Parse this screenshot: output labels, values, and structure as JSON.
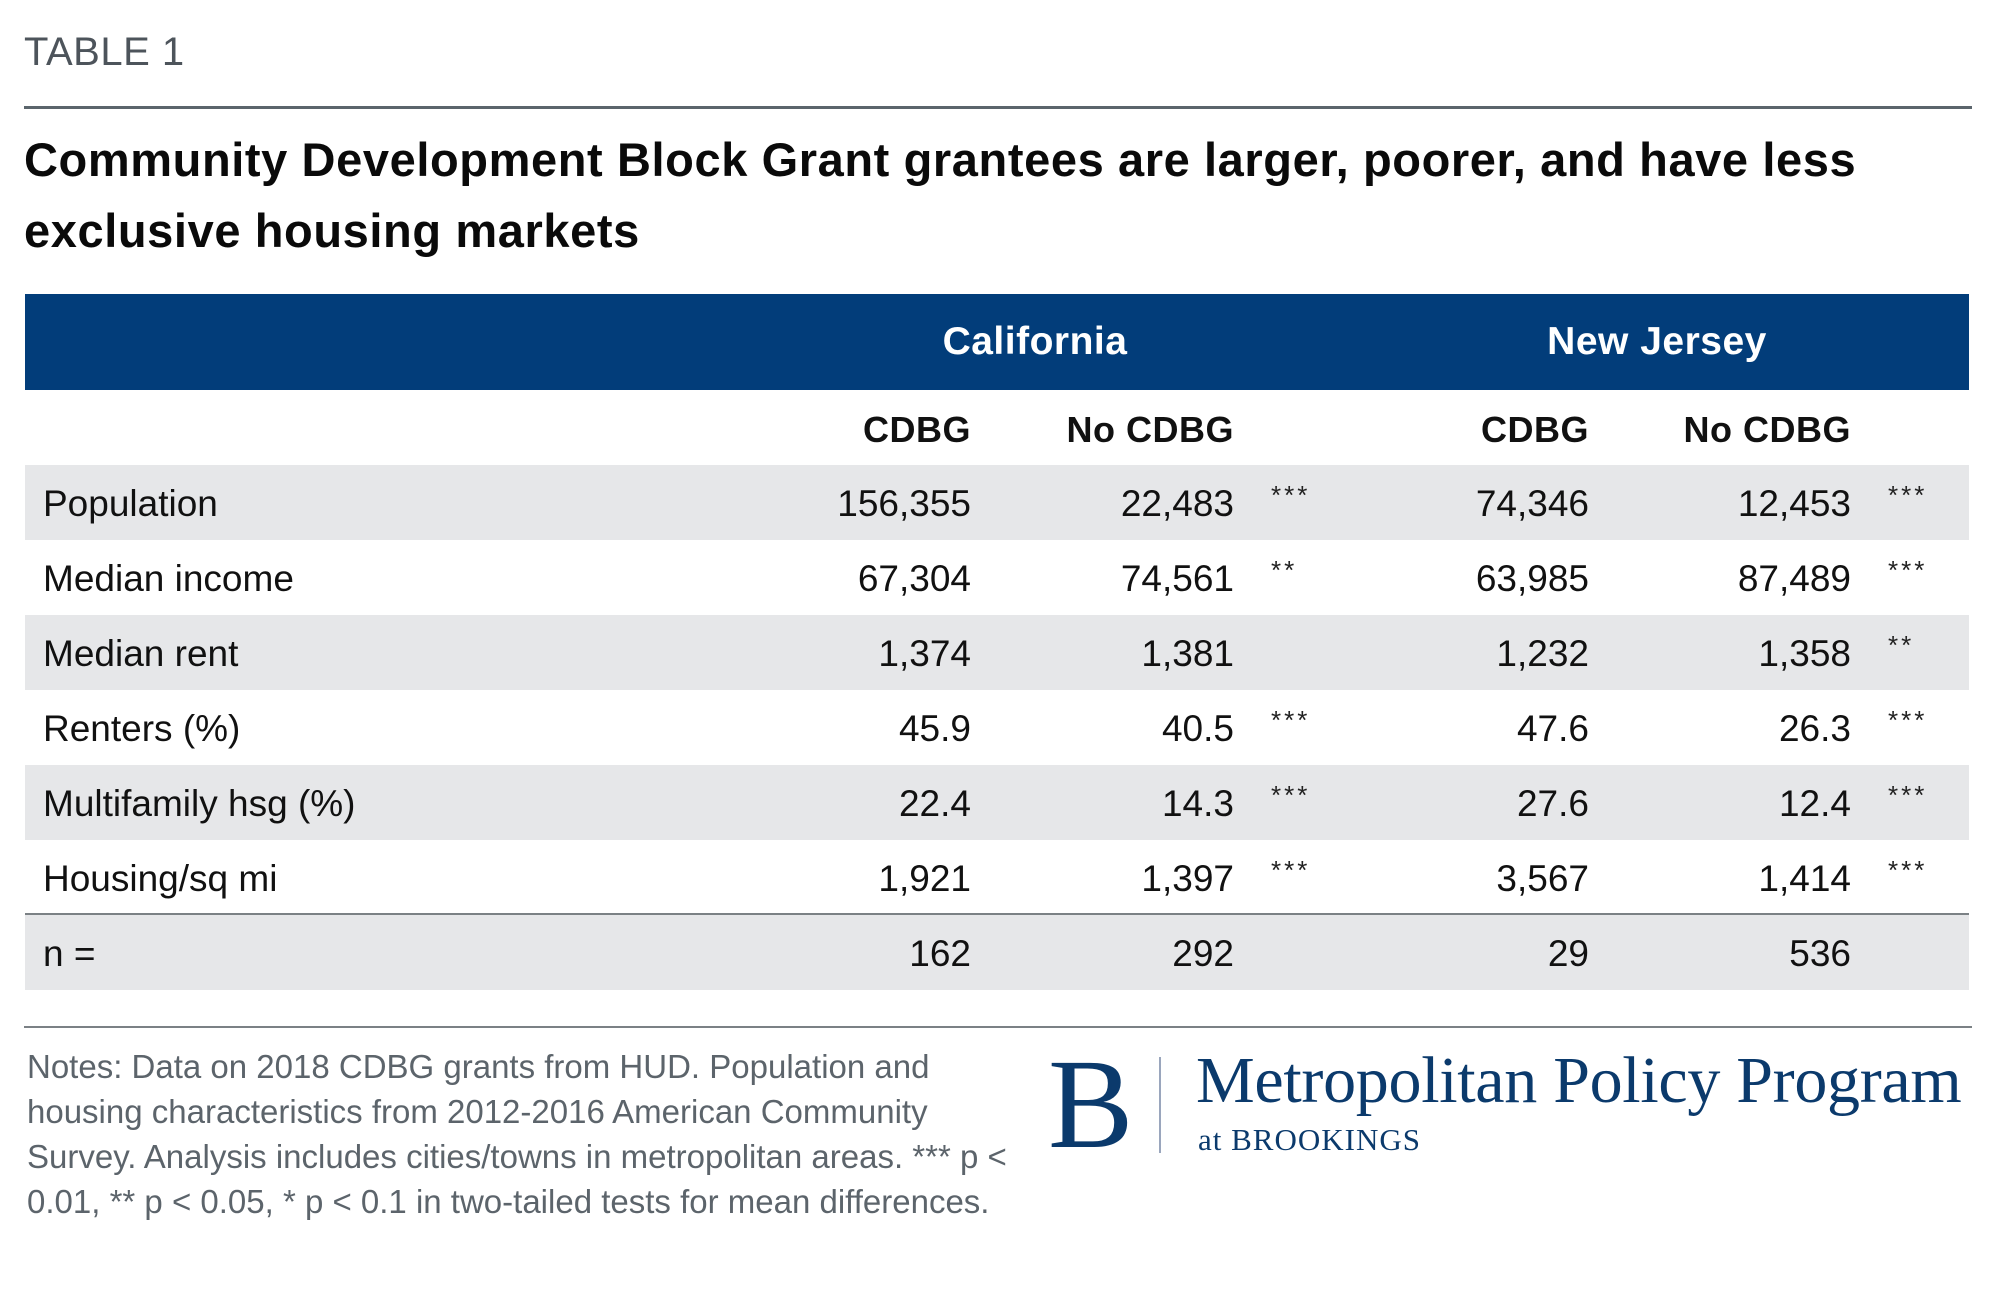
{
  "table_label": "TABLE 1",
  "title": "Community Development Block Grant grantees are larger, poorer, and have less exclusive housing markets",
  "header": {
    "groups": [
      "California",
      "New Jersey"
    ],
    "columns": [
      "CDBG",
      "No CDBG",
      "CDBG",
      "No CDBG"
    ]
  },
  "rows": [
    {
      "label": "Population",
      "ca_cdbg": "156,355",
      "ca_no": "22,483",
      "ca_sig": "***",
      "nj_cdbg": "74,346",
      "nj_no": "12,453",
      "nj_sig": "***"
    },
    {
      "label": "Median income",
      "ca_cdbg": "67,304",
      "ca_no": "74,561",
      "ca_sig": "**",
      "nj_cdbg": "63,985",
      "nj_no": "87,489",
      "nj_sig": "***"
    },
    {
      "label": "Median rent",
      "ca_cdbg": "1,374",
      "ca_no": "1,381",
      "ca_sig": "",
      "nj_cdbg": "1,232",
      "nj_no": "1,358",
      "nj_sig": "**"
    },
    {
      "label": "Renters (%)",
      "ca_cdbg": "45.9",
      "ca_no": "40.5",
      "ca_sig": "***",
      "nj_cdbg": "47.6",
      "nj_no": "26.3",
      "nj_sig": "***"
    },
    {
      "label": "Multifamily hsg (%)",
      "ca_cdbg": "22.4",
      "ca_no": "14.3",
      "ca_sig": "***",
      "nj_cdbg": "27.6",
      "nj_no": "12.4",
      "nj_sig": "***"
    },
    {
      "label": "Housing/sq mi",
      "ca_cdbg": "1,921",
      "ca_no": "1,397",
      "ca_sig": "***",
      "nj_cdbg": "3,567",
      "nj_no": "1,414",
      "nj_sig": "***"
    },
    {
      "label": "n =",
      "ca_cdbg": "162",
      "ca_no": "292",
      "ca_sig": "",
      "nj_cdbg": "29",
      "nj_no": "536",
      "nj_sig": ""
    }
  ],
  "notes": "Notes: Data on 2018 CDBG grants from HUD. Population and housing characteristics from 2012-2016 American Community Survey. Analysis includes cities/towns in metropolitan areas. *** p < 0.01, ** p < 0.05, * p < 0.1 in two-tailed tests for mean differences.",
  "logo": {
    "mark": "B",
    "name": "Metropolitan Policy Program",
    "sub": "at BROOKINGS"
  },
  "colors": {
    "header_bg": "#023d7a",
    "row_stripe": "#e6e7e9",
    "brand": "#0b3a6c"
  },
  "chart_data": {
    "type": "table",
    "title": "Community Development Block Grant grantees are larger, poorer, and have less exclusive housing markets",
    "column_groups": [
      "California",
      "New Jersey"
    ],
    "columns": [
      "CA CDBG",
      "CA No CDBG",
      "CA sig",
      "NJ CDBG",
      "NJ No CDBG",
      "NJ sig"
    ],
    "row_labels": [
      "Population",
      "Median income",
      "Median rent",
      "Renters (%)",
      "Multifamily hsg (%)",
      "Housing/sq mi",
      "n ="
    ],
    "values": [
      [
        156355,
        22483,
        "***",
        74346,
        12453,
        "***"
      ],
      [
        67304,
        74561,
        "**",
        63985,
        87489,
        "***"
      ],
      [
        1374,
        1381,
        "",
        1232,
        1358,
        "**"
      ],
      [
        45.9,
        40.5,
        "***",
        47.6,
        26.3,
        "***"
      ],
      [
        22.4,
        14.3,
        "***",
        27.6,
        12.4,
        "***"
      ],
      [
        1921,
        1397,
        "***",
        3567,
        1414,
        "***"
      ],
      [
        162,
        292,
        "",
        29,
        536,
        ""
      ]
    ]
  }
}
